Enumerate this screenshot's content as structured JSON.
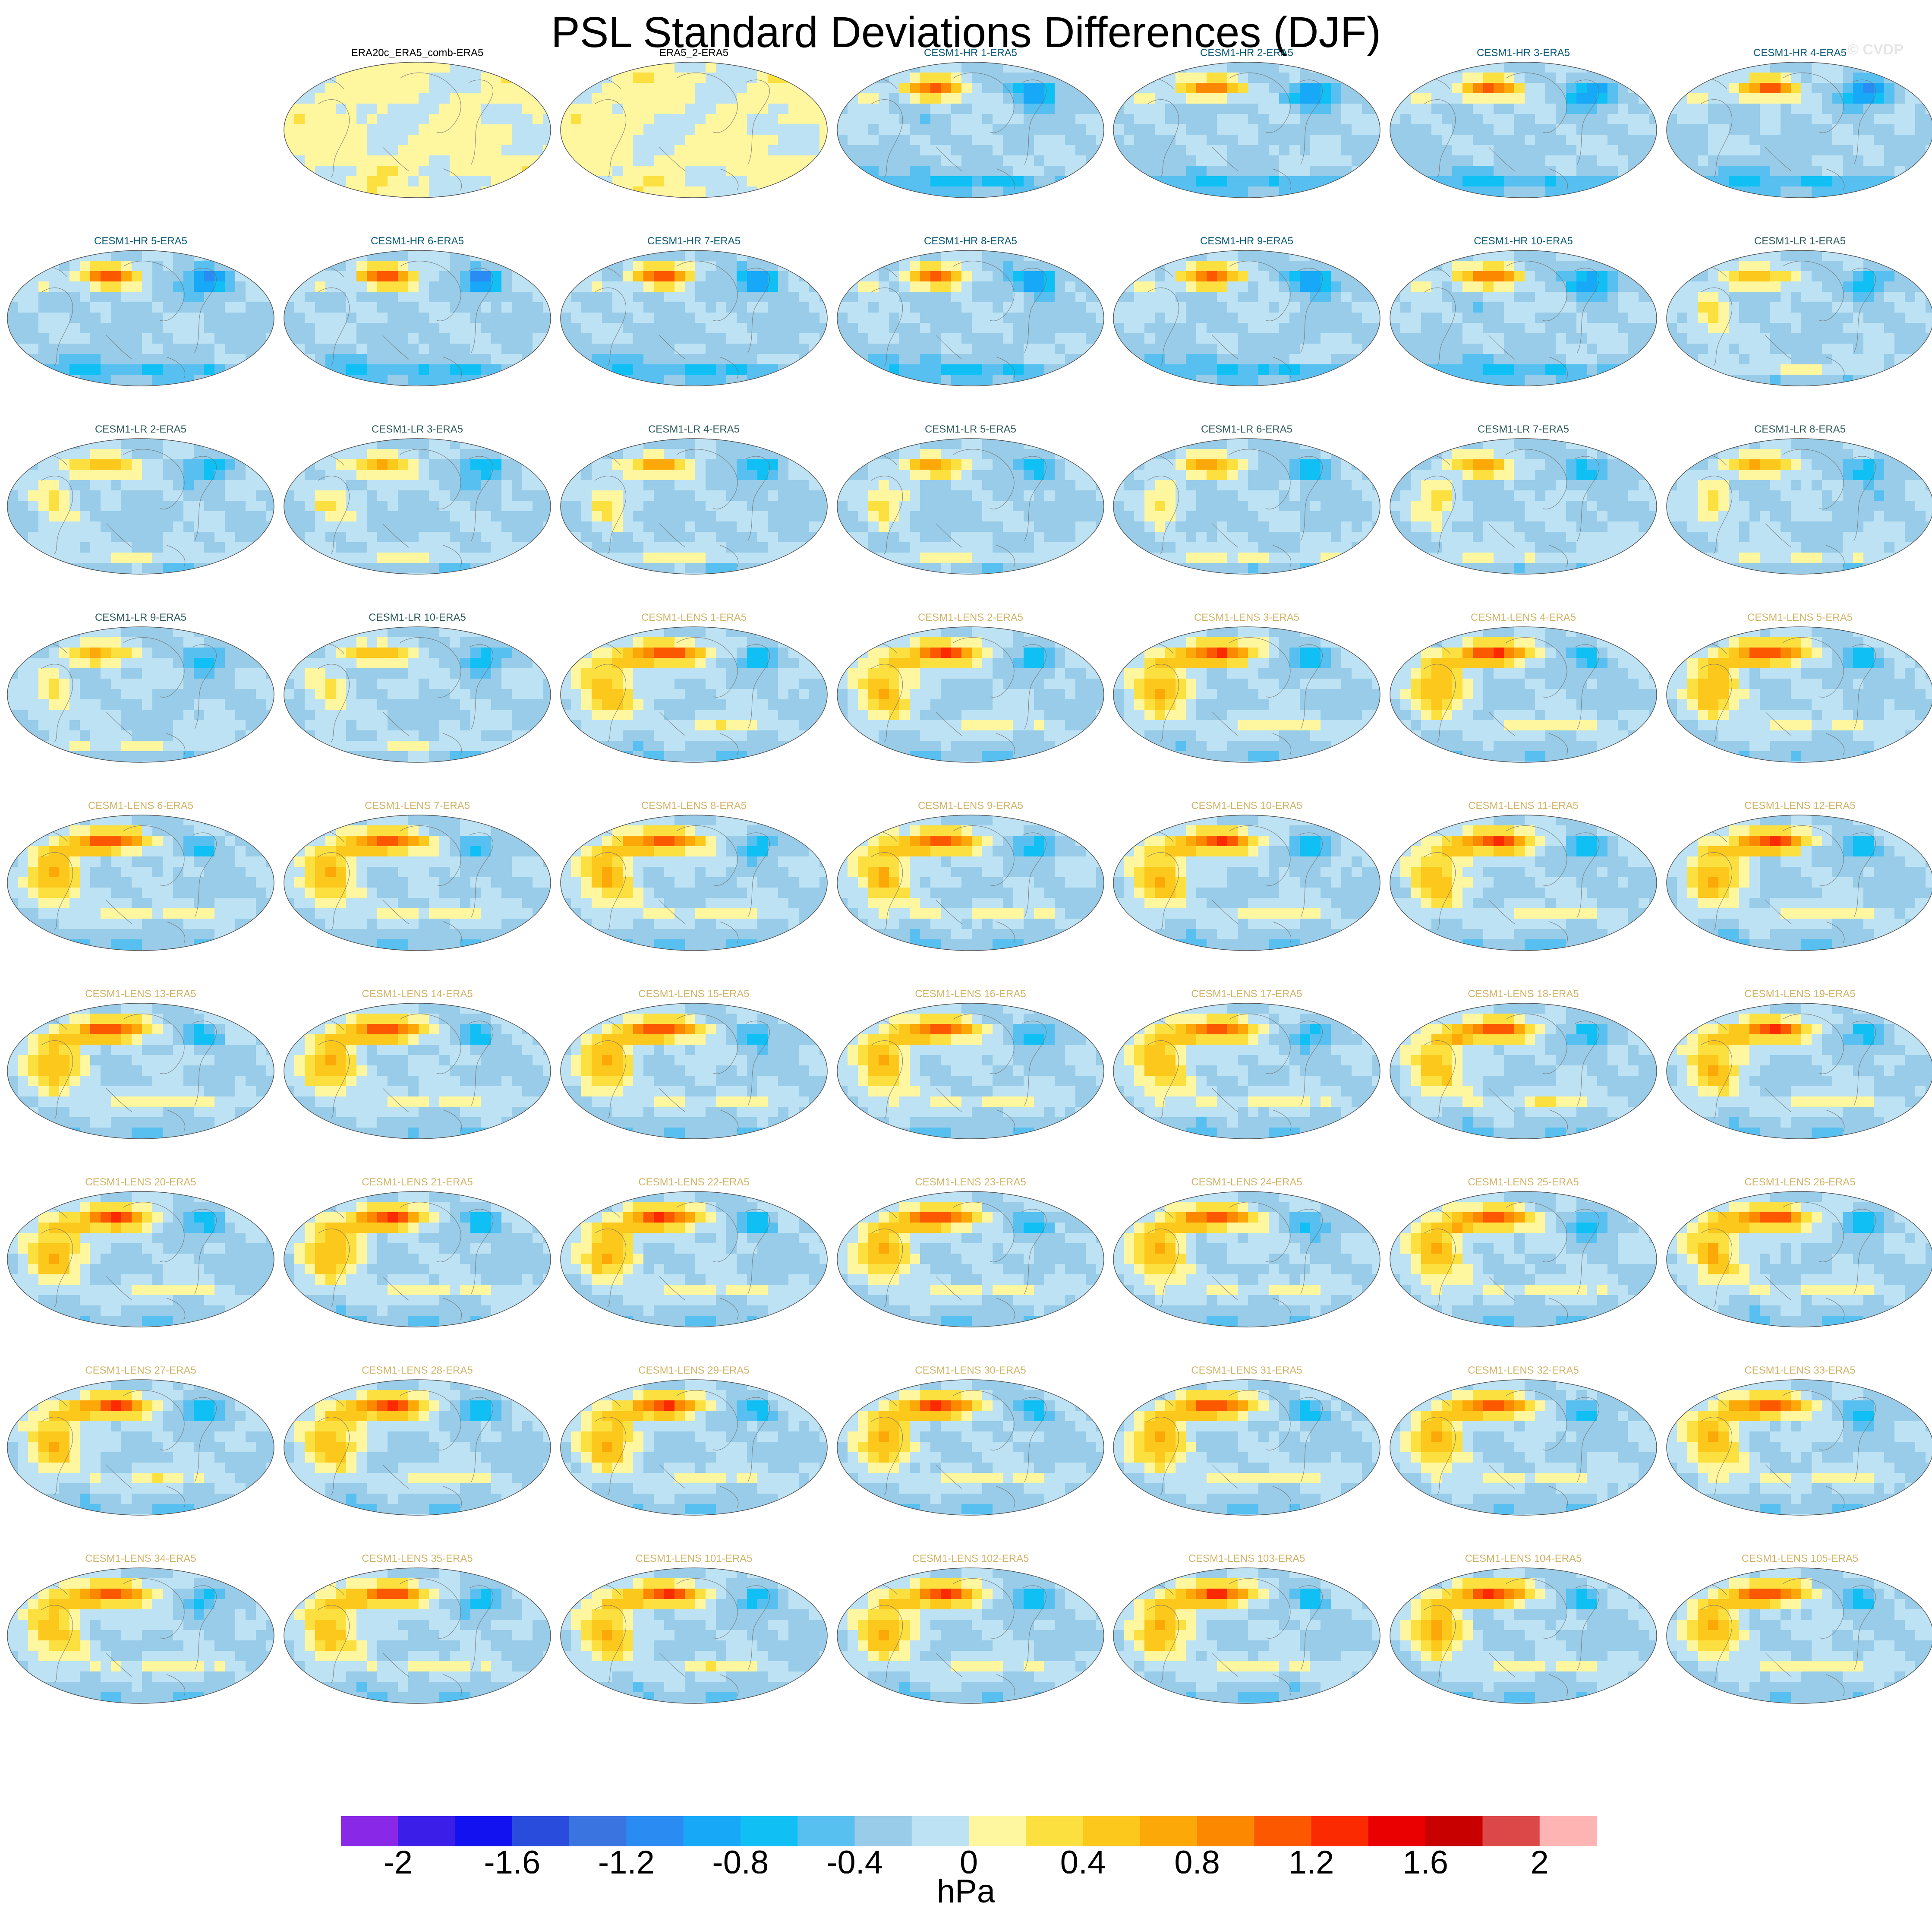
{
  "title": "PSL Standard Deviations Differences (DJF)",
  "watermark": "© CVDP",
  "chart_data": {
    "type": "heatmap",
    "projection": "robinson-like global maps",
    "title": "PSL Standard Deviations Differences (DJF)",
    "units": "hPa",
    "colorbar": {
      "levels": [
        -2.2,
        -2,
        -1.8,
        -1.6,
        -1.4,
        -1.2,
        -1,
        -0.8,
        -0.6,
        -0.4,
        -0.2,
        0,
        0.2,
        0.4,
        0.6,
        0.8,
        1,
        1.2,
        1.4,
        1.6,
        1.8,
        2,
        2.2
      ],
      "tick_values": [
        -2,
        -1.6,
        -1.2,
        -0.8,
        -0.4,
        0,
        0.4,
        0.8,
        1.2,
        1.6,
        2
      ],
      "tick_labels": [
        "-2",
        "-1.6",
        "-1.2",
        "-0.8",
        "-0.4",
        "0",
        "0.4",
        "0.8",
        "1.2",
        "1.6",
        "2"
      ],
      "colors": [
        "#8a28e8",
        "#3b1ee8",
        "#1212f0",
        "#2a4cdc",
        "#3a74e0",
        "#2a8cf2",
        "#18a8f8",
        "#10c0f4",
        "#58c0f0",
        "#98cce8",
        "#bde2f4",
        "#fff6a0",
        "#fce040",
        "#fcc81c",
        "#fca808",
        "#fc8800",
        "#fc5800",
        "#fc2a00",
        "#ea0000",
        "#c80000",
        "#dc4848",
        "#ffb4b4"
      ]
    },
    "grid": {
      "rows": 9,
      "cols": 7,
      "first_row_offset": 1
    },
    "panels": [
      {
        "name": "ERA20c_ERA5_comb-ERA5",
        "group": "obs"
      },
      {
        "name": "ERA5_2-ERA5",
        "group": "obs"
      },
      {
        "name": "CESM1-HR 1-ERA5",
        "group": "hr"
      },
      {
        "name": "CESM1-HR 2-ERA5",
        "group": "hr"
      },
      {
        "name": "CESM1-HR 3-ERA5",
        "group": "hr"
      },
      {
        "name": "CESM1-HR 4-ERA5",
        "group": "hr"
      },
      {
        "name": "CESM1-HR 5-ERA5",
        "group": "hr"
      },
      {
        "name": "CESM1-HR 6-ERA5",
        "group": "hr"
      },
      {
        "name": "CESM1-HR 7-ERA5",
        "group": "hr"
      },
      {
        "name": "CESM1-HR 8-ERA5",
        "group": "hr"
      },
      {
        "name": "CESM1-HR 9-ERA5",
        "group": "hr"
      },
      {
        "name": "CESM1-HR 10-ERA5",
        "group": "hr"
      },
      {
        "name": "CESM1-LR 1-ERA5",
        "group": "lr"
      },
      {
        "name": "CESM1-LR 2-ERA5",
        "group": "lr"
      },
      {
        "name": "CESM1-LR 3-ERA5",
        "group": "lr"
      },
      {
        "name": "CESM1-LR 4-ERA5",
        "group": "lr"
      },
      {
        "name": "CESM1-LR 5-ERA5",
        "group": "lr"
      },
      {
        "name": "CESM1-LR 6-ERA5",
        "group": "lr"
      },
      {
        "name": "CESM1-LR 7-ERA5",
        "group": "lr"
      },
      {
        "name": "CESM1-LR 8-ERA5",
        "group": "lr"
      },
      {
        "name": "CESM1-LR 9-ERA5",
        "group": "lr"
      },
      {
        "name": "CESM1-LR 10-ERA5",
        "group": "lr"
      },
      {
        "name": "CESM1-LENS 1-ERA5",
        "group": "lens"
      },
      {
        "name": "CESM1-LENS 2-ERA5",
        "group": "lens"
      },
      {
        "name": "CESM1-LENS 3-ERA5",
        "group": "lens"
      },
      {
        "name": "CESM1-LENS 4-ERA5",
        "group": "lens"
      },
      {
        "name": "CESM1-LENS 5-ERA5",
        "group": "lens"
      },
      {
        "name": "CESM1-LENS 6-ERA5",
        "group": "lens"
      },
      {
        "name": "CESM1-LENS 7-ERA5",
        "group": "lens"
      },
      {
        "name": "CESM1-LENS 8-ERA5",
        "group": "lens"
      },
      {
        "name": "CESM1-LENS 9-ERA5",
        "group": "lens"
      },
      {
        "name": "CESM1-LENS 10-ERA5",
        "group": "lens"
      },
      {
        "name": "CESM1-LENS 11-ERA5",
        "group": "lens"
      },
      {
        "name": "CESM1-LENS 12-ERA5",
        "group": "lens"
      },
      {
        "name": "CESM1-LENS 13-ERA5",
        "group": "lens"
      },
      {
        "name": "CESM1-LENS 14-ERA5",
        "group": "lens"
      },
      {
        "name": "CESM1-LENS 15-ERA5",
        "group": "lens"
      },
      {
        "name": "CESM1-LENS 16-ERA5",
        "group": "lens"
      },
      {
        "name": "CESM1-LENS 17-ERA5",
        "group": "lens"
      },
      {
        "name": "CESM1-LENS 18-ERA5",
        "group": "lens"
      },
      {
        "name": "CESM1-LENS 19-ERA5",
        "group": "lens"
      },
      {
        "name": "CESM1-LENS 20-ERA5",
        "group": "lens"
      },
      {
        "name": "CESM1-LENS 21-ERA5",
        "group": "lens"
      },
      {
        "name": "CESM1-LENS 22-ERA5",
        "group": "lens"
      },
      {
        "name": "CESM1-LENS 23-ERA5",
        "group": "lens"
      },
      {
        "name": "CESM1-LENS 24-ERA5",
        "group": "lens"
      },
      {
        "name": "CESM1-LENS 25-ERA5",
        "group": "lens"
      },
      {
        "name": "CESM1-LENS 26-ERA5",
        "group": "lens"
      },
      {
        "name": "CESM1-LENS 27-ERA5",
        "group": "lens"
      },
      {
        "name": "CESM1-LENS 28-ERA5",
        "group": "lens"
      },
      {
        "name": "CESM1-LENS 29-ERA5",
        "group": "lens"
      },
      {
        "name": "CESM1-LENS 30-ERA5",
        "group": "lens"
      },
      {
        "name": "CESM1-LENS 31-ERA5",
        "group": "lens"
      },
      {
        "name": "CESM1-LENS 32-ERA5",
        "group": "lens"
      },
      {
        "name": "CESM1-LENS 33-ERA5",
        "group": "lens"
      },
      {
        "name": "CESM1-LENS 34-ERA5",
        "group": "lens"
      },
      {
        "name": "CESM1-LENS 35-ERA5",
        "group": "lens"
      },
      {
        "name": "CESM1-LENS 101-ERA5",
        "group": "lens"
      },
      {
        "name": "CESM1-LENS 102-ERA5",
        "group": "lens"
      },
      {
        "name": "CESM1-LENS 103-ERA5",
        "group": "lens"
      },
      {
        "name": "CESM1-LENS 104-ERA5",
        "group": "lens"
      },
      {
        "name": "CESM1-LENS 105-ERA5",
        "group": "lens"
      }
    ],
    "group_title_colors": {
      "obs": "#000000",
      "hr": "#0a5a78",
      "lr": "#2e5a5a",
      "lens": "#d2b468"
    }
  }
}
